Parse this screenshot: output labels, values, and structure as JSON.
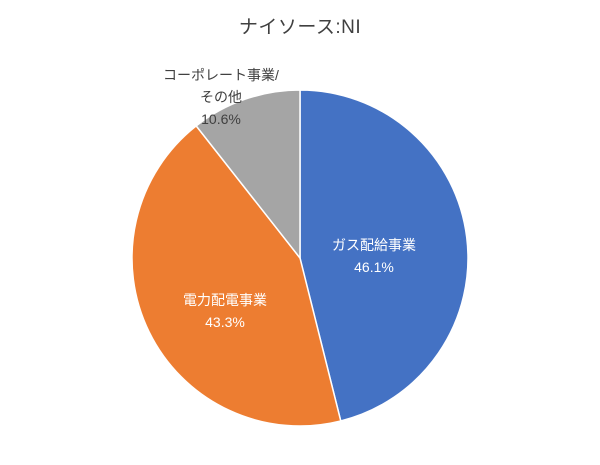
{
  "chart_data": {
    "type": "pie",
    "title": "ナイソース:NI",
    "legend": "none",
    "start_angle_deg": 0,
    "direction": "clockwise",
    "segments": [
      {
        "id": "gas-distribution",
        "label": "ガス配給事業",
        "value": 46.1,
        "display": "46.1%",
        "color": "#4472C4",
        "label_position": "inside"
      },
      {
        "id": "electric-distribution",
        "label": "電力配電事業",
        "value": 43.3,
        "display": "43.3%",
        "color": "#ED7D31",
        "label_position": "inside"
      },
      {
        "id": "corporate-other",
        "label": "コーポレート事業/その他",
        "label_lines": [
          "コーポレート事業/",
          "その他"
        ],
        "value": 10.6,
        "display": "10.6%",
        "color": "#A5A5A5",
        "label_position": "outside"
      }
    ]
  }
}
